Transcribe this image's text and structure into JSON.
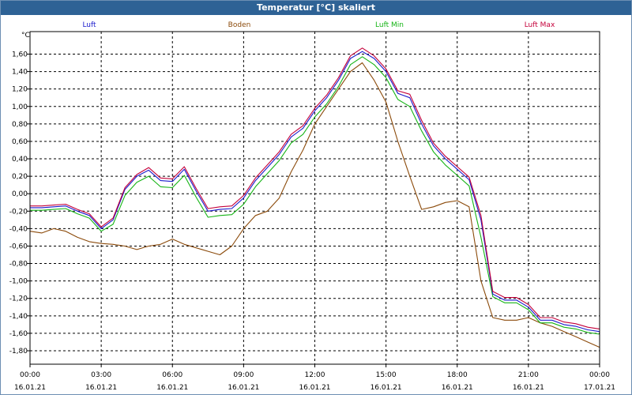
{
  "window": {
    "title": "Temperatur [°C] skaliert"
  },
  "chart_data": {
    "type": "line",
    "title": "Temperatur [°C] skaliert",
    "ylabel": "°C",
    "xlabel": "",
    "ylim": [
      -1.9,
      1.75
    ],
    "grid": true,
    "x_hours": [
      0,
      0.5,
      1,
      1.5,
      2,
      2.5,
      3,
      3.5,
      4,
      4.5,
      5,
      5.5,
      6,
      6.5,
      7,
      7.5,
      8,
      8.5,
      9,
      9.5,
      10,
      10.5,
      11,
      11.5,
      12,
      12.5,
      13,
      13.5,
      14,
      14.5,
      15,
      15.5,
      16,
      16.5,
      17,
      17.5,
      18,
      18.5,
      19,
      19.5,
      20,
      20.5,
      21,
      21.5,
      22,
      22.5,
      23,
      23.5,
      24
    ],
    "xticks": [
      {
        "time": "00:00",
        "date": "16.01.21"
      },
      {
        "time": "03:00",
        "date": "16.01.21"
      },
      {
        "time": "06:00",
        "date": "16.01.21"
      },
      {
        "time": "09:00",
        "date": "16.01.21"
      },
      {
        "time": "12:00",
        "date": "16.01.21"
      },
      {
        "time": "15:00",
        "date": "16.01.21"
      },
      {
        "time": "18:00",
        "date": "16.01.21"
      },
      {
        "time": "21:00",
        "date": "16.01.21"
      },
      {
        "time": "00:00",
        "date": "17.01.21"
      }
    ],
    "yticks": [
      "1,60",
      "1,40",
      "1,20",
      "1,00",
      "0,80",
      "0,60",
      "0,40",
      "0,20",
      "0,00",
      "-0,20",
      "-0,40",
      "-0,60",
      "-0,80",
      "-1,00",
      "-1,20",
      "-1,40",
      "-1,60",
      "-1,80"
    ],
    "ytick_values": [
      1.6,
      1.4,
      1.2,
      1.0,
      0.8,
      0.6,
      0.4,
      0.2,
      0.0,
      -0.2,
      -0.4,
      -0.6,
      -0.8,
      -1.0,
      -1.2,
      -1.4,
      -1.6,
      -1.8
    ],
    "series": [
      {
        "name": "Luft",
        "color": "#1a1acc",
        "values": [
          -0.16,
          -0.16,
          -0.15,
          -0.14,
          -0.2,
          -0.25,
          -0.4,
          -0.3,
          0.05,
          0.2,
          0.27,
          0.15,
          0.14,
          0.28,
          0.03,
          -0.2,
          -0.18,
          -0.17,
          -0.05,
          0.15,
          0.3,
          0.45,
          0.65,
          0.75,
          0.95,
          1.1,
          1.3,
          1.55,
          1.63,
          1.55,
          1.4,
          1.15,
          1.1,
          0.8,
          0.55,
          0.4,
          0.28,
          0.16,
          -0.3,
          -1.15,
          -1.22,
          -1.22,
          -1.3,
          -1.45,
          -1.45,
          -1.5,
          -1.52,
          -1.56,
          -1.58
        ]
      },
      {
        "name": "Boden",
        "color": "#8b4a0a",
        "values": [
          -0.43,
          -0.45,
          -0.4,
          -0.43,
          -0.5,
          -0.55,
          -0.57,
          -0.58,
          -0.6,
          -0.64,
          -0.6,
          -0.58,
          -0.52,
          -0.58,
          -0.62,
          -0.66,
          -0.7,
          -0.6,
          -0.4,
          -0.25,
          -0.2,
          -0.05,
          0.25,
          0.5,
          0.8,
          1.0,
          1.2,
          1.4,
          1.5,
          1.3,
          1.05,
          0.6,
          0.2,
          -0.18,
          -0.15,
          -0.1,
          -0.08,
          -0.15,
          -1.0,
          -1.42,
          -1.45,
          -1.45,
          -1.42,
          -1.48,
          -1.52,
          -1.58,
          -1.64,
          -1.7,
          -1.76
        ]
      },
      {
        "name": "Luft Min",
        "color": "#16b416",
        "values": [
          -0.19,
          -0.19,
          -0.18,
          -0.17,
          -0.23,
          -0.28,
          -0.43,
          -0.35,
          -0.02,
          0.13,
          0.2,
          0.08,
          0.07,
          0.21,
          -0.04,
          -0.27,
          -0.25,
          -0.24,
          -0.12,
          0.08,
          0.23,
          0.38,
          0.58,
          0.68,
          0.88,
          1.03,
          1.23,
          1.48,
          1.57,
          1.48,
          1.33,
          1.08,
          1.0,
          0.72,
          0.48,
          0.33,
          0.21,
          0.09,
          -0.5,
          -1.18,
          -1.25,
          -1.25,
          -1.33,
          -1.48,
          -1.48,
          -1.53,
          -1.55,
          -1.59,
          -1.61
        ]
      },
      {
        "name": "Luft Max",
        "color": "#c4003a",
        "values": [
          -0.14,
          -0.14,
          -0.13,
          -0.12,
          -0.18,
          -0.23,
          -0.38,
          -0.28,
          0.07,
          0.22,
          0.3,
          0.18,
          0.17,
          0.31,
          0.06,
          -0.17,
          -0.15,
          -0.14,
          -0.02,
          0.18,
          0.33,
          0.48,
          0.68,
          0.78,
          0.98,
          1.13,
          1.33,
          1.58,
          1.67,
          1.58,
          1.43,
          1.18,
          1.14,
          0.84,
          0.58,
          0.43,
          0.31,
          0.19,
          -0.25,
          -1.12,
          -1.19,
          -1.19,
          -1.27,
          -1.42,
          -1.42,
          -1.47,
          -1.49,
          -1.53,
          -1.55
        ]
      }
    ]
  }
}
